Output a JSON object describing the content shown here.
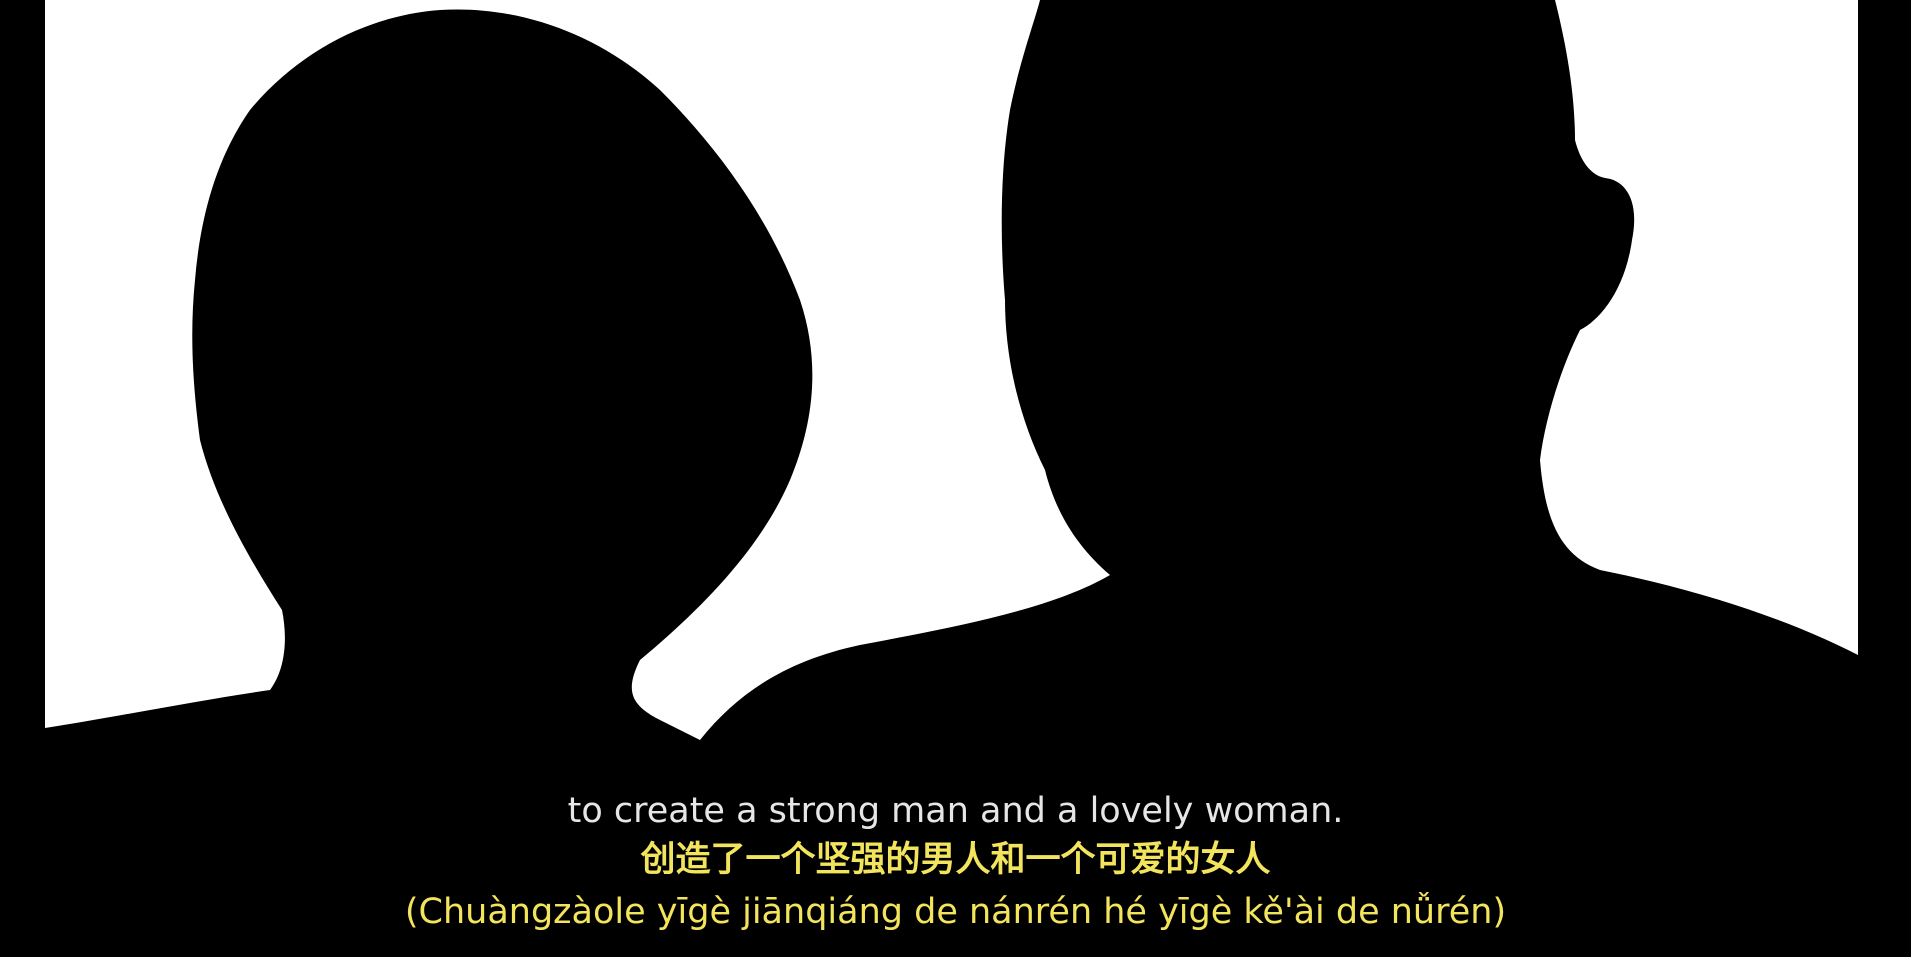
{
  "video": {
    "subtitle_en": "to create a strong man and a lovely woman.",
    "subtitle_zh": "创造了一个坚强的男人和一个可爱的女人",
    "subtitle_pinyin": "(Chuàngzàole yīgè jiānqiáng de nánrén hé yīgè kě'ài de nǚrén)"
  },
  "colors": {
    "background": "#000000",
    "scene_background": "#ffffff",
    "subtitle_english": "#e6e6e6",
    "subtitle_chinese": "#f2e45c",
    "subtitle_pinyin": "#f2e45c"
  }
}
